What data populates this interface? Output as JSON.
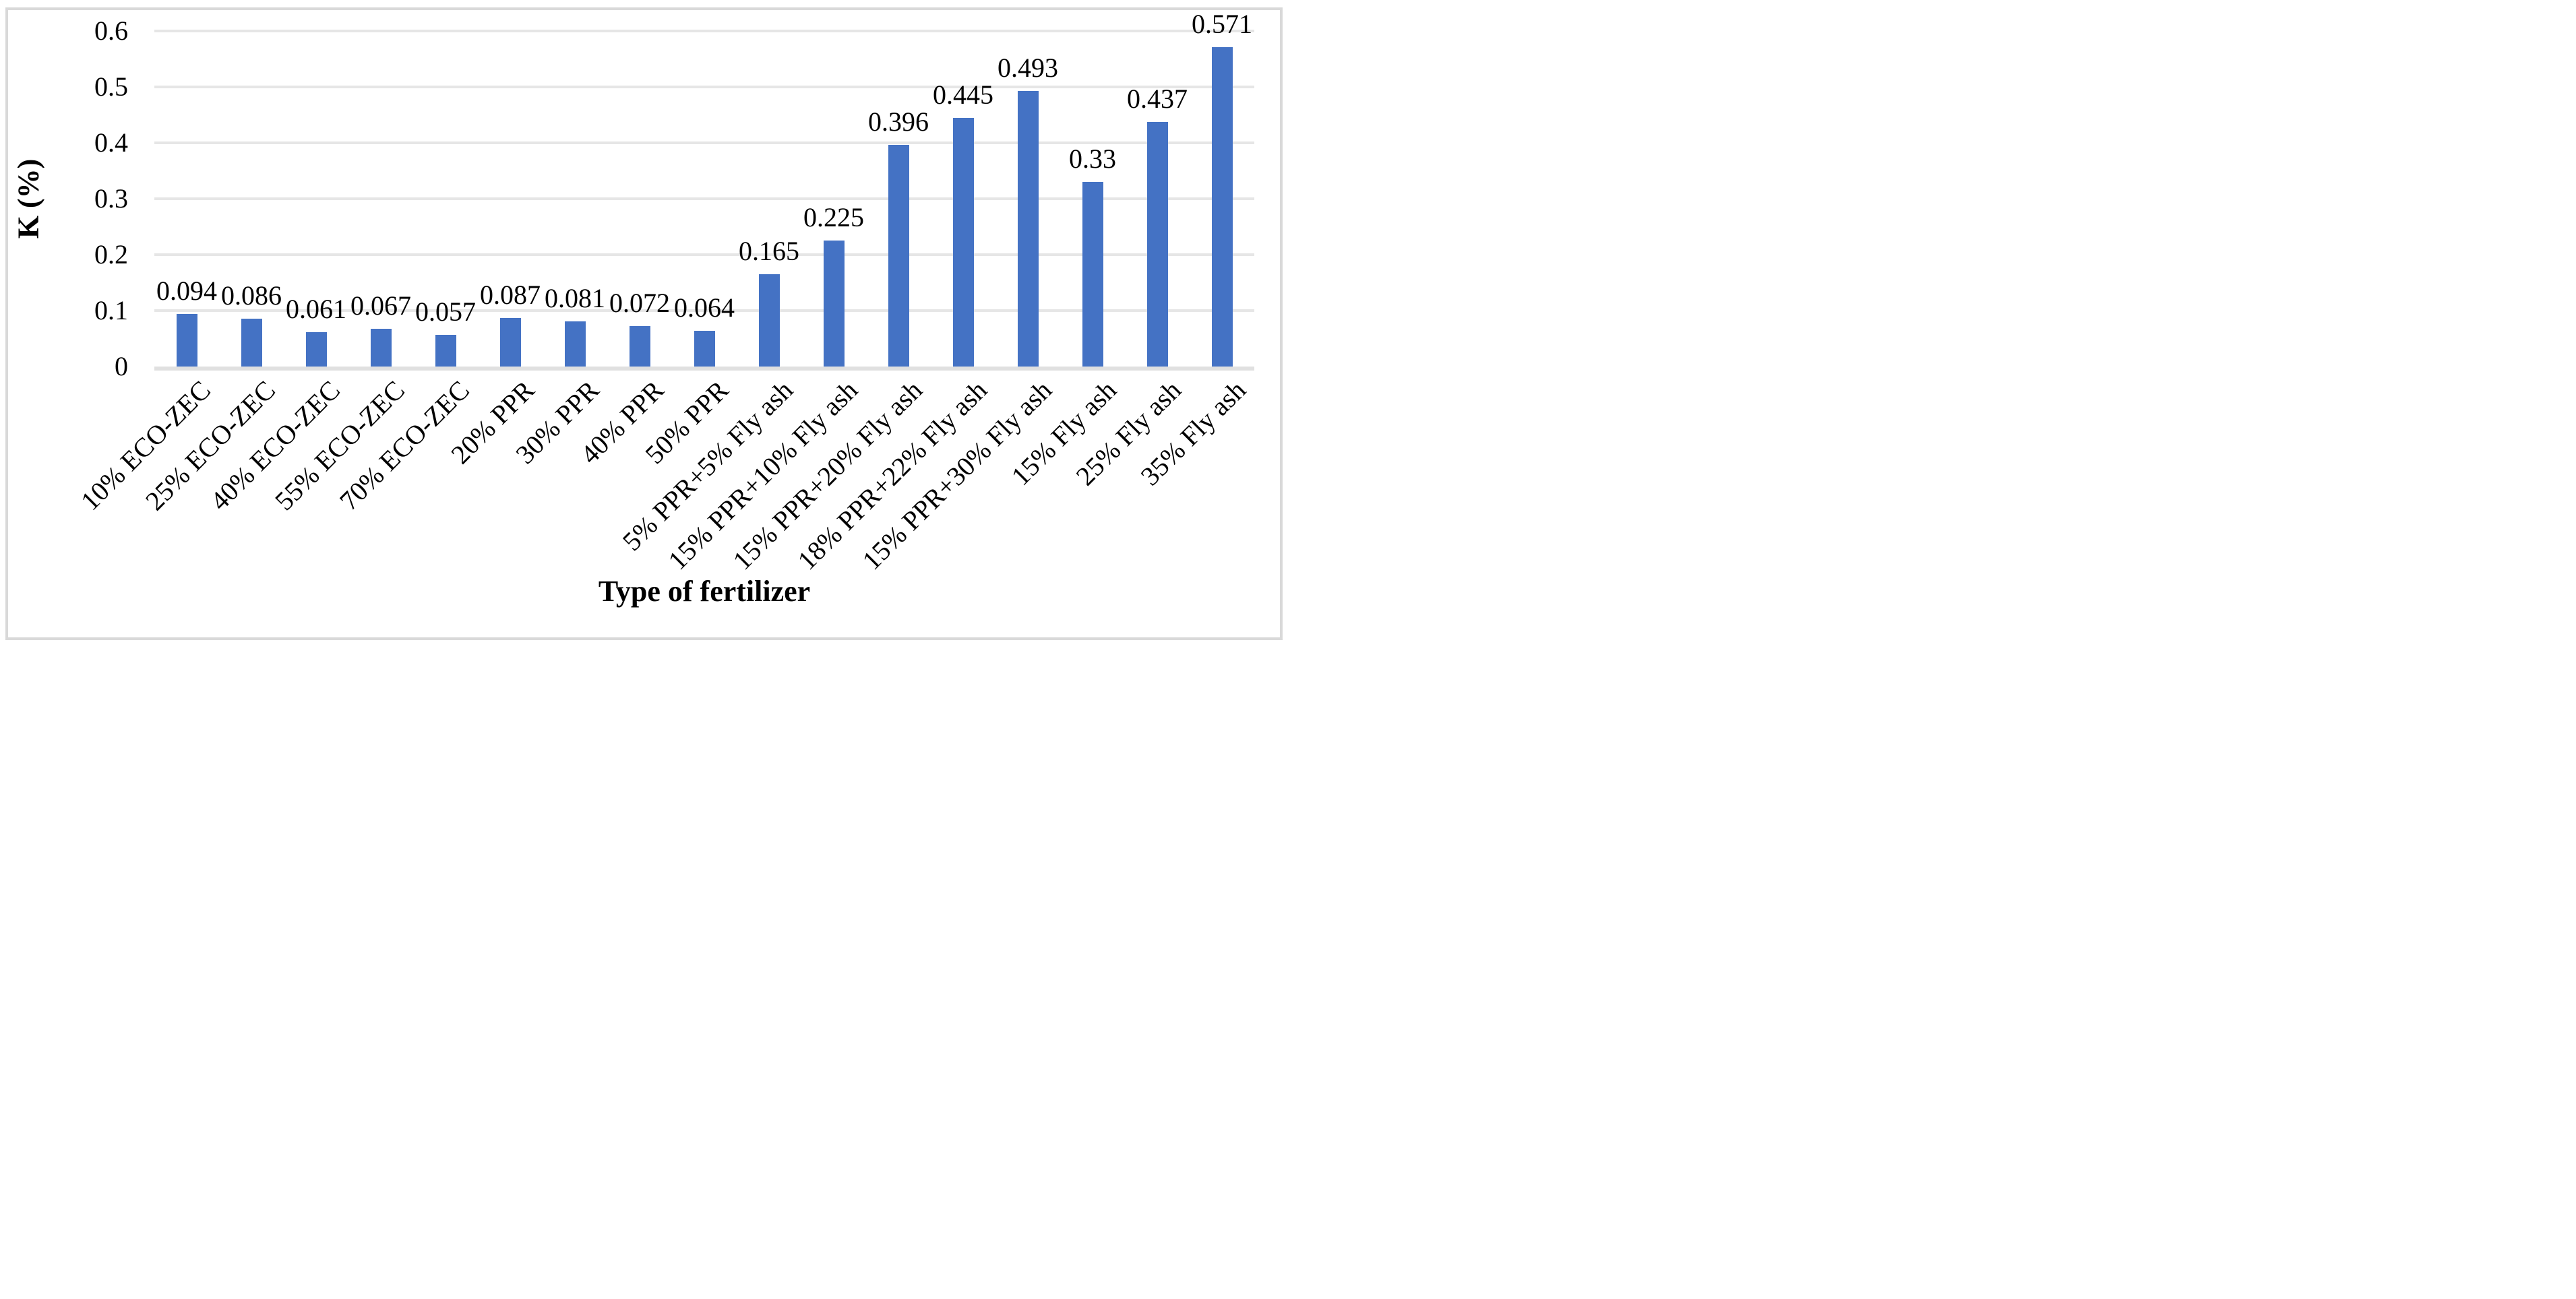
{
  "chart_data": {
    "type": "bar",
    "title": "",
    "xlabel": "Type of fertilizer",
    "ylabel": "K (%)",
    "categories": [
      "10% ECO-ZEC",
      "25% ECO-ZEC",
      "40% ECO-ZEC",
      "55% ECO-ZEC",
      "70% ECO-ZEC",
      "20% PPR",
      "30% PPR",
      "40% PPR",
      "50% PPR",
      "5% PPR+5% Fly ash",
      "15% PPR+10% Fly ash",
      "15% PPR+20% Fly ash",
      "18% PPR+22% Fly ash",
      "15% PPR+30% Fly ash",
      "15% Fly ash",
      "25% Fly ash",
      "35% Fly ash"
    ],
    "values": [
      0.094,
      0.086,
      0.061,
      0.067,
      0.057,
      0.087,
      0.081,
      0.072,
      0.064,
      0.165,
      0.225,
      0.396,
      0.445,
      0.493,
      0.33,
      0.437,
      0.571
    ],
    "value_labels": [
      "0.094",
      "0.086",
      "0.061",
      "0.067",
      "0.057",
      "0.087",
      "0.081",
      "0.072",
      "0.064",
      "0.165",
      "0.225",
      "0.396",
      "0.445",
      "0.493",
      "0.33",
      "0.437",
      "0.571"
    ],
    "ylim": [
      0,
      0.6
    ],
    "ytick_labels": [
      "0",
      "0.1",
      "0.2",
      "0.3",
      "0.4",
      "0.5",
      "0.6"
    ],
    "ytick_values": [
      0,
      0.1,
      0.2,
      0.3,
      0.4,
      0.5,
      0.6
    ],
    "grid": "horizontal",
    "legend": "none",
    "bar_color": "#4472C4",
    "gridline_color": "#E6E6E6",
    "axis_line_color": "#E0E0E0",
    "frame_border_color": "#D9D9D9"
  }
}
